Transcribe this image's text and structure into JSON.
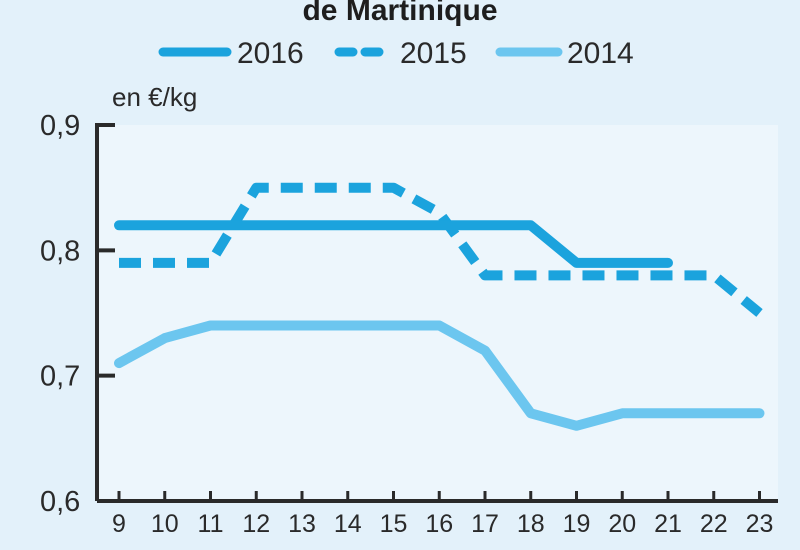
{
  "chart_data": {
    "type": "line",
    "title": "de Martinique",
    "unit_label": "en €/kg",
    "xlabel": "",
    "ylabel": "",
    "x": [
      9,
      10,
      11,
      12,
      13,
      14,
      15,
      16,
      17,
      18,
      19,
      20,
      21,
      22,
      23
    ],
    "xtick_labels": [
      "9",
      "10",
      "11",
      "12",
      "13",
      "14",
      "15",
      "16",
      "17",
      "18",
      "19",
      "20",
      "21",
      "22",
      "23"
    ],
    "ylim": [
      0.6,
      0.9
    ],
    "yticks": [
      0.6,
      0.7,
      0.8,
      0.9
    ],
    "ytick_labels": [
      "0,6",
      "0,7",
      "0,8",
      "0,9"
    ],
    "grid": false,
    "legend_position": "top",
    "series": [
      {
        "name": "2016",
        "style": "solid",
        "color": "#1ba3dd",
        "x": [
          9,
          10,
          11,
          12,
          13,
          14,
          15,
          16,
          17,
          18,
          19,
          20,
          21
        ],
        "values": [
          0.82,
          0.82,
          0.82,
          0.82,
          0.82,
          0.82,
          0.82,
          0.82,
          0.82,
          0.82,
          0.79,
          0.79,
          0.79
        ]
      },
      {
        "name": "2015",
        "style": "dashed",
        "color": "#1ba3dd",
        "x": [
          9,
          10,
          11,
          12,
          13,
          14,
          15,
          16,
          17,
          18,
          19,
          20,
          21,
          22,
          23
        ],
        "values": [
          0.79,
          0.79,
          0.79,
          0.85,
          0.85,
          0.85,
          0.85,
          0.83,
          0.78,
          0.78,
          0.78,
          0.78,
          0.78,
          0.78,
          0.75
        ]
      },
      {
        "name": "2014",
        "style": "solid",
        "color": "#6cc6ef",
        "x": [
          9,
          10,
          11,
          12,
          13,
          14,
          15,
          16,
          17,
          18,
          19,
          20,
          21,
          22,
          23
        ],
        "values": [
          0.71,
          0.73,
          0.74,
          0.74,
          0.74,
          0.74,
          0.74,
          0.74,
          0.72,
          0.67,
          0.66,
          0.67,
          0.67,
          0.67,
          0.67
        ]
      }
    ]
  },
  "colors": {
    "background": "#e3f1fa",
    "plot_area": "#edf6fc",
    "axis": "#2a2a2a"
  }
}
